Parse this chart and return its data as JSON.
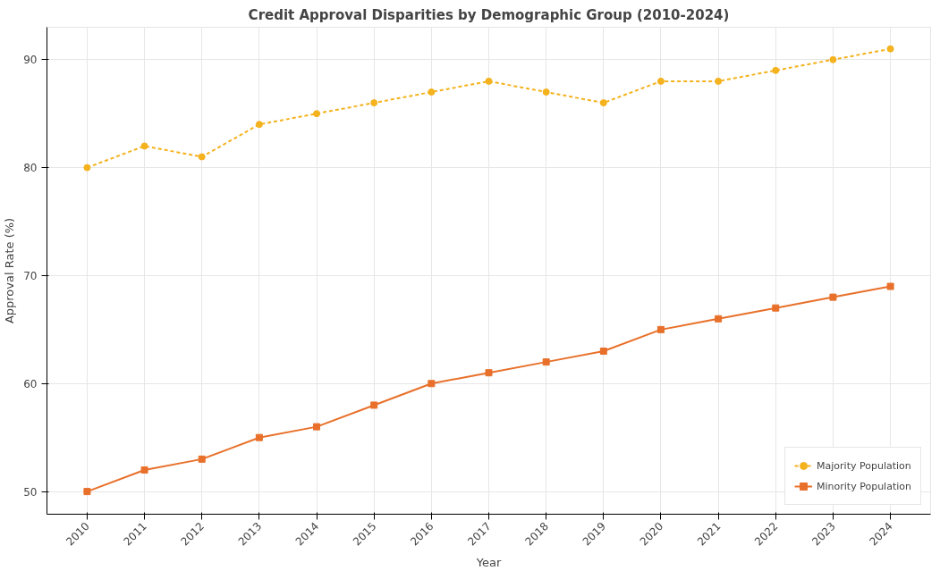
{
  "chart_data": {
    "type": "line",
    "title": "Credit Approval Disparities by Demographic Group (2010-2024)",
    "xlabel": "Year",
    "ylabel": "Approval Rate (%)",
    "x": [
      2010,
      2011,
      2012,
      2013,
      2014,
      2015,
      2016,
      2017,
      2018,
      2019,
      2020,
      2021,
      2022,
      2023,
      2024
    ],
    "series": [
      {
        "name": "Majority Population",
        "color": "#f4b21e",
        "marker": "circle",
        "line_style": "dashed",
        "values": [
          80,
          82,
          81,
          84,
          85,
          86,
          87,
          88,
          87,
          86,
          88,
          88,
          89,
          90,
          91
        ]
      },
      {
        "name": "Minority Population",
        "color": "#e8702a",
        "marker": "square",
        "line_style": "solid",
        "values": [
          50,
          52,
          53,
          55,
          56,
          58,
          60,
          61,
          62,
          63,
          65,
          66,
          67,
          68,
          69
        ]
      }
    ],
    "xlim": [
      2009.3,
      2024.7
    ],
    "xticks": [
      2010,
      2011,
      2012,
      2013,
      2014,
      2015,
      2016,
      2017,
      2018,
      2019,
      2020,
      2021,
      2022,
      2023,
      2024
    ],
    "ylim": [
      47.9,
      93
    ],
    "yticks": [
      50,
      60,
      70,
      80,
      90
    ],
    "grid": true,
    "legend": "bottom right"
  }
}
